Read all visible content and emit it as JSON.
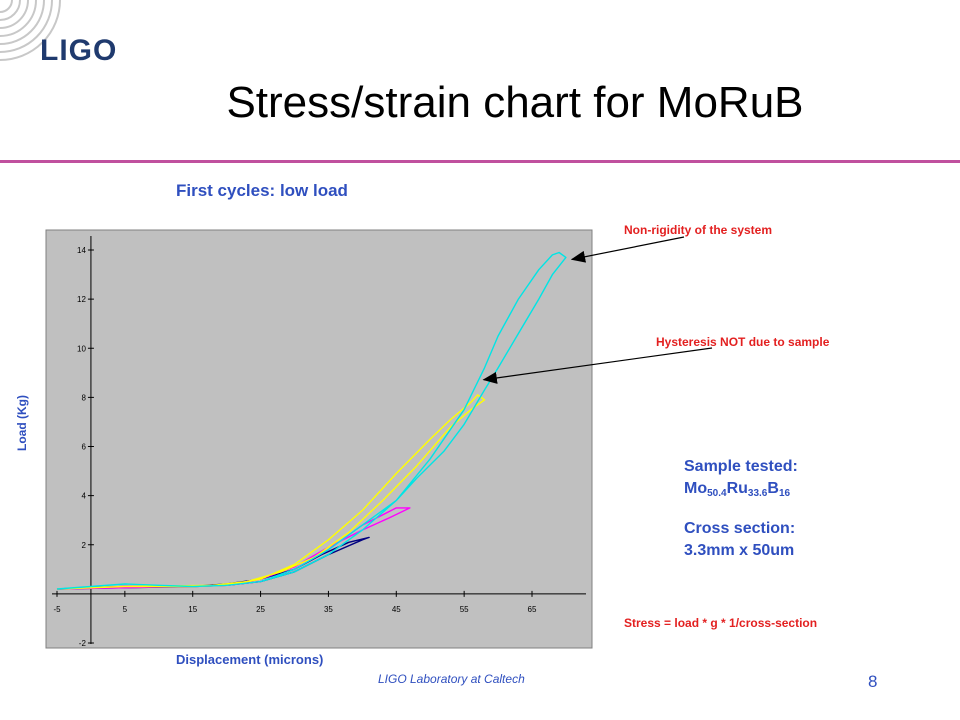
{
  "logo": {
    "text": "LIGO"
  },
  "slide": {
    "title": "Stress/strain chart for MoRuB",
    "footer": "LIGO Laboratory at Caltech",
    "page_number": "8",
    "accent_color": "#c0509e",
    "text_color": "#2f4fbf",
    "annotation_color": "#e32020"
  },
  "annotations": {
    "non_rigidity": "Non-rigidity of the system",
    "hysteresis": "Hysteresis NOT due to sample",
    "stress_formula": "Stress = load * g * 1/cross-section"
  },
  "sample": {
    "heading": "Sample tested:",
    "formula_parts": [
      {
        "el": "Mo",
        "sub": "50.4"
      },
      {
        "el": "Ru",
        "sub": "33.6"
      },
      {
        "el": "B",
        "sub": "16"
      }
    ],
    "cross_heading": "Cross section:",
    "cross_value": "3.3mm x 50um"
  },
  "chart_data": {
    "type": "line",
    "title": "First cycles: low load",
    "xlabel": "Displacement  (microns)",
    "ylabel": "Load (Kg)",
    "xlim": [
      -5,
      75
    ],
    "ylim": [
      -2,
      15
    ],
    "x_ticks": [
      "-5",
      "5",
      "15",
      "25",
      "35",
      "45",
      "55",
      "65"
    ],
    "x_tick_values": [
      -5,
      5,
      15,
      25,
      35,
      45,
      55,
      65
    ],
    "y_ticks": [
      "-2",
      "2",
      "4",
      "6",
      "8",
      "10",
      "12",
      "14"
    ],
    "y_tick_values": [
      -2,
      2,
      4,
      6,
      8,
      10,
      12,
      14
    ],
    "plot_background": "#c0c0c0",
    "grid": false,
    "series": [
      {
        "color": "#000080",
        "x": [
          -5,
          5,
          15,
          20,
          25,
          30,
          35,
          40,
          41,
          38,
          34,
          30,
          25,
          20,
          15,
          5,
          -5
        ],
        "y": [
          0.2,
          0.3,
          0.3,
          0.35,
          0.5,
          0.9,
          1.6,
          2.2,
          2.3,
          2.1,
          1.6,
          1.0,
          0.6,
          0.4,
          0.3,
          0.25,
          0.2
        ]
      },
      {
        "color": "#ff00ff",
        "x": [
          -5,
          5,
          15,
          20,
          25,
          30,
          35,
          40,
          45,
          47,
          44,
          40,
          35,
          30,
          25,
          20,
          5,
          -5
        ],
        "y": [
          0.2,
          0.3,
          0.3,
          0.35,
          0.5,
          1.0,
          1.8,
          2.8,
          3.5,
          3.5,
          3.1,
          2.6,
          1.9,
          1.1,
          0.6,
          0.35,
          0.25,
          0.2
        ]
      },
      {
        "color": "#ffff00",
        "x": [
          -5,
          5,
          15,
          20,
          25,
          30,
          35,
          40,
          45,
          50,
          53,
          56,
          57,
          58,
          56,
          53,
          48,
          43,
          38,
          33,
          28,
          23,
          18,
          5,
          -5
        ],
        "y": [
          0.2,
          0.3,
          0.3,
          0.35,
          0.6,
          1.2,
          2.2,
          3.4,
          4.9,
          6.3,
          7.1,
          7.8,
          8.1,
          7.9,
          7.5,
          6.8,
          5.2,
          3.8,
          2.5,
          1.5,
          0.9,
          0.5,
          0.35,
          0.3,
          0.2
        ]
      },
      {
        "color": "#00e5e5",
        "x": [
          -5,
          0,
          5,
          10,
          15,
          20,
          25,
          30,
          35,
          40,
          45,
          50,
          55,
          58,
          60,
          63,
          66,
          68,
          69,
          70,
          68,
          66,
          63,
          60,
          58,
          55,
          52,
          48,
          45,
          40,
          35,
          30,
          25,
          20,
          15,
          10,
          5,
          0,
          -5
        ],
        "y": [
          0.2,
          0.3,
          0.4,
          0.35,
          0.3,
          0.35,
          0.5,
          1.0,
          1.8,
          2.8,
          3.8,
          5.5,
          7.5,
          9.2,
          10.5,
          12.0,
          13.2,
          13.8,
          13.9,
          13.7,
          13.0,
          12.0,
          10.6,
          9.2,
          8.3,
          6.9,
          5.8,
          4.7,
          3.8,
          2.6,
          1.6,
          0.9,
          0.5,
          0.35,
          0.3,
          0.35,
          0.4,
          0.3,
          0.2
        ]
      }
    ],
    "arrows": [
      {
        "target_x": 70,
        "target_y": 13.7
      },
      {
        "target_x": 57,
        "target_y": 8.8
      }
    ]
  }
}
